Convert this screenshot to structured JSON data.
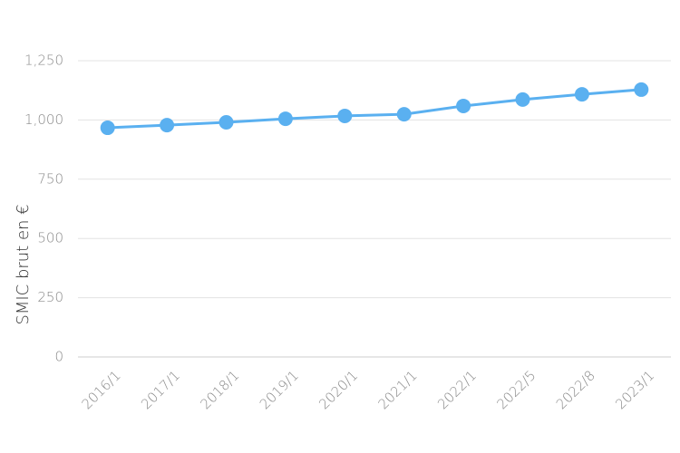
{
  "chart_data": {
    "type": "line",
    "y_label": "SMIC brut en €",
    "categories": [
      "2016/1",
      "2017/1",
      "2018/1",
      "2019/1",
      "2020/1",
      "2021/1",
      "2022/1",
      "2022/5",
      "2022/8",
      "2023/1"
    ],
    "series": [
      {
        "name": "SMIC brut",
        "color": "#5ab0f0",
        "values": [
          967,
          978,
          990,
          1005,
          1017,
          1024,
          1059,
          1086,
          1108,
          1128
        ]
      }
    ],
    "ylim": [
      0,
      1250
    ],
    "yticks": [
      0,
      250,
      500,
      750,
      {
        "value": 1000,
        "label": "1,000"
      },
      {
        "value": 1250,
        "label": "1,250"
      }
    ],
    "grid": true
  }
}
